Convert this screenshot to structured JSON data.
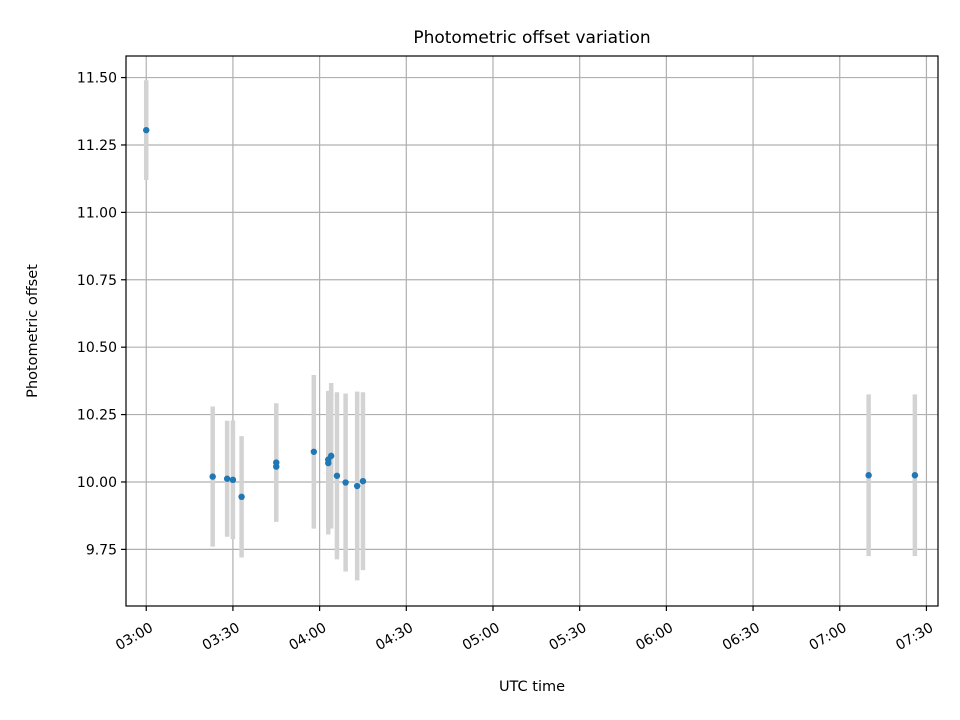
{
  "chart_data": {
    "type": "scatter",
    "title": "Photometric offset variation",
    "xlabel": "UTC time",
    "ylabel": "Photometric offset",
    "xlim": [
      "02:53",
      "07:34"
    ],
    "ylim": [
      9.54,
      11.58
    ],
    "x_ticks": [
      "03:00",
      "03:30",
      "04:00",
      "04:30",
      "05:00",
      "05:30",
      "06:00",
      "06:30",
      "07:00",
      "07:30"
    ],
    "y_ticks": [
      "9.75",
      "10.00",
      "10.25",
      "10.50",
      "10.75",
      "11.00",
      "11.25",
      "11.50"
    ],
    "grid": true,
    "series": [
      {
        "marker_color": "#1f77b4",
        "errorbar_color": "#d3d3d3",
        "points": [
          {
            "x": "03:00",
            "y": 11.305,
            "yerr": 0.185
          },
          {
            "x": "03:23",
            "y": 10.02,
            "yerr": 0.26
          },
          {
            "x": "03:28",
            "y": 10.012,
            "yerr": 0.215
          },
          {
            "x": "03:30",
            "y": 10.008,
            "yerr": 0.22
          },
          {
            "x": "03:33",
            "y": 9.945,
            "yerr": 0.225
          },
          {
            "x": "03:45",
            "y": 10.057,
            "yerr": 0.2
          },
          {
            "x": "03:45",
            "y": 10.072,
            "yerr": 0.22
          },
          {
            "x": "03:58",
            "y": 10.112,
            "yerr": 0.285
          },
          {
            "x": "04:03",
            "y": 10.083,
            "yerr": 0.255
          },
          {
            "x": "04:03",
            "y": 10.07,
            "yerr": 0.265
          },
          {
            "x": "04:04",
            "y": 10.097,
            "yerr": 0.27
          },
          {
            "x": "04:06",
            "y": 10.023,
            "yerr": 0.31
          },
          {
            "x": "04:09",
            "y": 9.998,
            "yerr": 0.33
          },
          {
            "x": "04:13",
            "y": 9.985,
            "yerr": 0.35
          },
          {
            "x": "04:15",
            "y": 10.003,
            "yerr": 0.33
          },
          {
            "x": "07:10",
            "y": 10.025,
            "yerr": 0.3
          },
          {
            "x": "07:26",
            "y": 10.025,
            "yerr": 0.3
          }
        ]
      }
    ]
  }
}
